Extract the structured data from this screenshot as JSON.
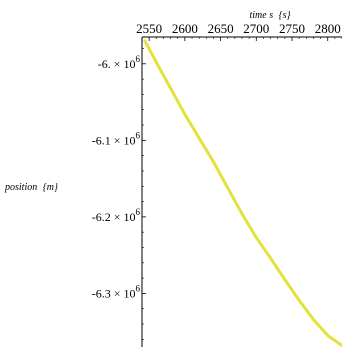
{
  "chart_data": {
    "type": "line",
    "title": "",
    "xlabel_main": "time s",
    "xlabel_unit": "{s}",
    "ylabel_main": "position",
    "ylabel_unit": "{m}",
    "xlim": [
      2540,
      2820
    ],
    "ylim": [
      -6370000,
      -5965000
    ],
    "xticks": [
      2550,
      2600,
      2650,
      2700,
      2750,
      2800
    ],
    "xtick_labels": [
      "2550",
      "2600",
      "2650",
      "2700",
      "2750",
      "2800"
    ],
    "yticks": [
      -6000000,
      -6100000,
      -6200000,
      -6300000
    ],
    "ytick_labels": [
      {
        "coef": "-6.",
        "exp": "6"
      },
      {
        "coef": "-6.1",
        "exp": "6"
      },
      {
        "coef": "-6.2",
        "exp": "6"
      },
      {
        "coef": "-6.3",
        "exp": "6"
      }
    ],
    "series": [
      {
        "color": "#e2e23c",
        "x": [
          2544,
          2560,
          2580,
          2600,
          2620,
          2640,
          2660,
          2680,
          2700,
          2720,
          2740,
          2760,
          2780,
          2800,
          2820
        ],
        "y": [
          -5970000,
          -5998000,
          -6032000,
          -6066000,
          -6097000,
          -6128000,
          -6162000,
          -6196000,
          -6227000,
          -6254000,
          -6282000,
          -6309000,
          -6334000,
          -6355000,
          -6368000
        ]
      }
    ],
    "grid": false,
    "legend": "none"
  }
}
